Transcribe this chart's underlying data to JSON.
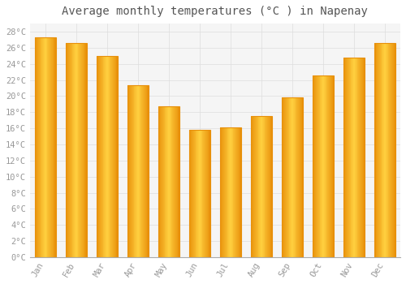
{
  "title": "Average monthly temperatures (°C ) in Napenay",
  "months": [
    "Jan",
    "Feb",
    "Mar",
    "Apr",
    "May",
    "Jun",
    "Jul",
    "Aug",
    "Sep",
    "Oct",
    "Nov",
    "Dec"
  ],
  "values": [
    27.3,
    26.6,
    25.0,
    21.3,
    18.7,
    15.8,
    16.1,
    17.5,
    19.8,
    22.6,
    24.8,
    26.6
  ],
  "bar_color_center": "#FFD040",
  "bar_color_edge": "#E8900A",
  "background_color": "#FFFFFF",
  "plot_bg_color": "#F5F5F5",
  "grid_color": "#DDDDDD",
  "ylim": [
    0,
    29
  ],
  "ytick_values": [
    0,
    2,
    4,
    6,
    8,
    10,
    12,
    14,
    16,
    18,
    20,
    22,
    24,
    26,
    28
  ],
  "title_fontsize": 10,
  "tick_fontsize": 7.5,
  "tick_color": "#999999",
  "title_color": "#555555"
}
